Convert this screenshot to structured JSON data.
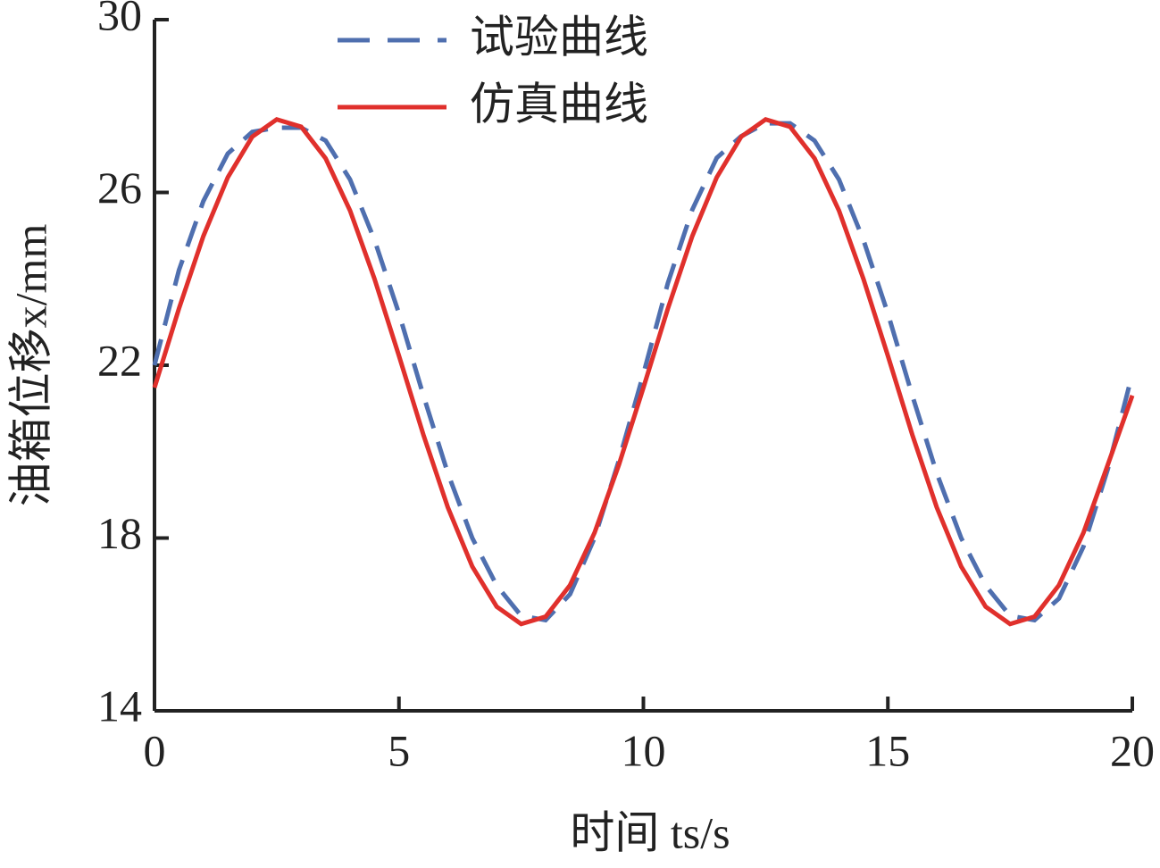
{
  "chart_data": {
    "type": "line",
    "xlabel": "时间 ts/s",
    "ylabel": "油箱位移x/mm",
    "x": [
      0,
      0.5,
      1,
      1.5,
      2,
      2.5,
      3,
      3.5,
      4,
      4.5,
      5,
      5.5,
      6,
      6.5,
      7,
      7.5,
      8,
      8.5,
      9,
      9.5,
      10,
      10.5,
      11,
      11.5,
      12,
      12.5,
      13,
      13.5,
      14,
      14.5,
      15,
      15.5,
      16,
      16.5,
      17,
      17.5,
      18,
      18.5,
      19,
      19.5,
      20
    ],
    "series": [
      {
        "name": "试验曲线",
        "color": "#4f6faf",
        "dashed": true,
        "values": [
          22.0,
          24.2,
          25.8,
          26.9,
          27.4,
          27.5,
          27.5,
          27.2,
          26.3,
          24.9,
          23.2,
          21.3,
          19.5,
          18.0,
          16.9,
          16.2,
          16.1,
          16.7,
          18.0,
          19.8,
          21.8,
          23.9,
          25.6,
          26.8,
          27.3,
          27.6,
          27.6,
          27.2,
          26.3,
          24.9,
          23.2,
          21.3,
          19.5,
          18.0,
          16.9,
          16.2,
          16.1,
          16.6,
          17.8,
          19.6,
          21.8
        ]
      },
      {
        "name": "仿真曲线",
        "color": "#e0302c",
        "dashed": false,
        "values": [
          21.48,
          23.31,
          24.99,
          26.35,
          27.29,
          27.69,
          27.52,
          26.79,
          25.58,
          24.0,
          22.22,
          20.39,
          18.71,
          17.34,
          16.41,
          16.01,
          16.18,
          16.91,
          18.12,
          19.7,
          21.48,
          23.31,
          24.99,
          26.35,
          27.29,
          27.69,
          27.52,
          26.79,
          25.58,
          24.0,
          22.22,
          20.39,
          18.71,
          17.34,
          16.41,
          16.01,
          16.18,
          16.91,
          18.12,
          19.7,
          21.3
        ]
      }
    ],
    "xlim": [
      0,
      20
    ],
    "xticks": [
      0,
      5,
      10,
      15,
      20
    ],
    "ylim": [
      14,
      30
    ],
    "yticks": [
      14,
      18,
      22,
      26,
      30
    ],
    "legend": "top"
  }
}
